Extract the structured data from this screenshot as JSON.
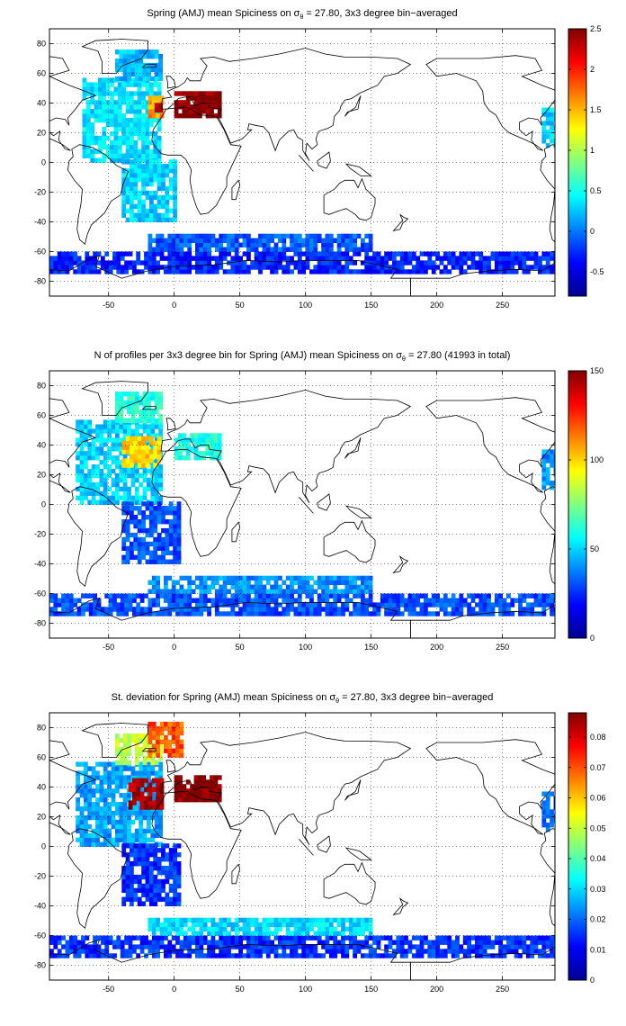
{
  "figure": {
    "colormap": [
      "#00008f",
      "#0000ff",
      "#0080ff",
      "#00ffff",
      "#80ff80",
      "#ffff00",
      "#ff8000",
      "#ff0000",
      "#800000"
    ],
    "coastline_color": "#000000"
  },
  "chart_data": [
    {
      "type": "heatmap",
      "title_prefix": "Spring (AMJ) mean Spiciness on σ",
      "title_sub": "θ",
      "title_suffix": " = 27.80, 3x3 degree bin−averaged",
      "xlim": [
        -95,
        290
      ],
      "ylim": [
        -90,
        90
      ],
      "xticks": [
        -50,
        0,
        50,
        100,
        150,
        200,
        250
      ],
      "yticks": [
        -80,
        -60,
        -40,
        -20,
        0,
        20,
        40,
        60,
        80
      ],
      "grid": true,
      "colorbar": {
        "clim": [
          -0.8,
          2.5
        ],
        "ticks": [
          "-0.5",
          "0",
          "0.5",
          "1",
          "1.5",
          "2",
          "2.5"
        ],
        "tick_values": [
          -0.5,
          0,
          0.5,
          1,
          1.5,
          2,
          2.5
        ]
      },
      "regions": [
        {
          "lon": [
            -70,
            -10
          ],
          "lat": [
            0,
            55
          ],
          "value": 0.35
        },
        {
          "lon": [
            -40,
            0
          ],
          "lat": [
            -40,
            0
          ],
          "value": 0.3
        },
        {
          "lon": [
            -45,
            -10
          ],
          "lat": [
            55,
            75
          ],
          "value": 0.2
        },
        {
          "lon": [
            -20,
            -8
          ],
          "lat": [
            30,
            44
          ],
          "value": 1.6
        },
        {
          "lon": [
            -15,
            -10
          ],
          "lat": [
            34,
            40
          ],
          "value": 2.3
        },
        {
          "lon": [
            0,
            36
          ],
          "lat": [
            30,
            46
          ],
          "value": 2.5
        },
        {
          "lon": [
            -95,
            290
          ],
          "lat": [
            -75,
            -60
          ],
          "value": -0.3
        },
        {
          "lon": [
            -20,
            150
          ],
          "lat": [
            -60,
            -50
          ],
          "value": -0.1
        },
        {
          "lon": [
            280,
            290
          ],
          "lat": [
            10,
            35
          ],
          "value": 0.3
        }
      ]
    },
    {
      "type": "heatmap",
      "title_prefix": "N of profiles per 3x3 degree bin for Spring (AMJ) mean Spiciness on σ",
      "title_sub": "θ",
      "title_suffix": " = 27.80 (41993 in total)",
      "xlim": [
        -95,
        290
      ],
      "ylim": [
        -90,
        90
      ],
      "xticks": [
        -50,
        0,
        50,
        100,
        150,
        200,
        250
      ],
      "yticks": [
        -80,
        -60,
        -40,
        -20,
        0,
        20,
        40,
        60,
        80
      ],
      "grid": true,
      "colorbar": {
        "clim": [
          0,
          150
        ],
        "ticks": [
          "0",
          "50",
          "100",
          "150"
        ],
        "tick_values": [
          0,
          50,
          100,
          150
        ]
      },
      "regions": [
        {
          "lon": [
            -75,
            -10
          ],
          "lat": [
            0,
            55
          ],
          "value": 50
        },
        {
          "lon": [
            -40,
            5
          ],
          "lat": [
            -40,
            0
          ],
          "value": 30
        },
        {
          "lon": [
            -45,
            -10
          ],
          "lat": [
            55,
            75
          ],
          "value": 60
        },
        {
          "lon": [
            -40,
            -10
          ],
          "lat": [
            25,
            45
          ],
          "value": 100
        },
        {
          "lon": [
            0,
            36
          ],
          "lat": [
            30,
            46
          ],
          "value": 60
        },
        {
          "lon": [
            -95,
            290
          ],
          "lat": [
            -75,
            -60
          ],
          "value": 30
        },
        {
          "lon": [
            -20,
            150
          ],
          "lat": [
            -60,
            -50
          ],
          "value": 40
        },
        {
          "lon": [
            280,
            290
          ],
          "lat": [
            10,
            35
          ],
          "value": 40
        }
      ]
    },
    {
      "type": "heatmap",
      "title_prefix": "St. deviation for Spring (AMJ) mean Spiciness on σ",
      "title_sub": "θ",
      "title_suffix": " = 27.80, 3x3 degree bin−averaged",
      "xlim": [
        -95,
        290
      ],
      "ylim": [
        -90,
        90
      ],
      "xticks": [
        -50,
        0,
        50,
        100,
        150,
        200,
        250
      ],
      "yticks": [
        -80,
        -60,
        -40,
        -20,
        0,
        20,
        40,
        60,
        80
      ],
      "grid": true,
      "colorbar": {
        "clim": [
          0,
          0.088
        ],
        "ticks": [
          "0",
          "0.01",
          "0.02",
          "0.03",
          "0.04",
          "0.05",
          "0.06",
          "0.07",
          "0.08"
        ],
        "tick_values": [
          0,
          0.01,
          0.02,
          0.03,
          0.04,
          0.05,
          0.06,
          0.07,
          0.08
        ]
      },
      "regions": [
        {
          "lon": [
            -75,
            -10
          ],
          "lat": [
            0,
            55
          ],
          "value": 0.025
        },
        {
          "lon": [
            -40,
            5
          ],
          "lat": [
            -40,
            0
          ],
          "value": 0.015
        },
        {
          "lon": [
            -45,
            -10
          ],
          "lat": [
            55,
            75
          ],
          "value": 0.05
        },
        {
          "lon": [
            -20,
            5
          ],
          "lat": [
            60,
            82
          ],
          "value": 0.07
        },
        {
          "lon": [
            -35,
            -10
          ],
          "lat": [
            25,
            45
          ],
          "value": 0.085
        },
        {
          "lon": [
            0,
            36
          ],
          "lat": [
            30,
            46
          ],
          "value": 0.088
        },
        {
          "lon": [
            -95,
            290
          ],
          "lat": [
            -75,
            -60
          ],
          "value": 0.015
        },
        {
          "lon": [
            -20,
            150
          ],
          "lat": [
            -60,
            -50
          ],
          "value": 0.03
        },
        {
          "lon": [
            280,
            290
          ],
          "lat": [
            10,
            35
          ],
          "value": 0.02
        }
      ]
    }
  ]
}
